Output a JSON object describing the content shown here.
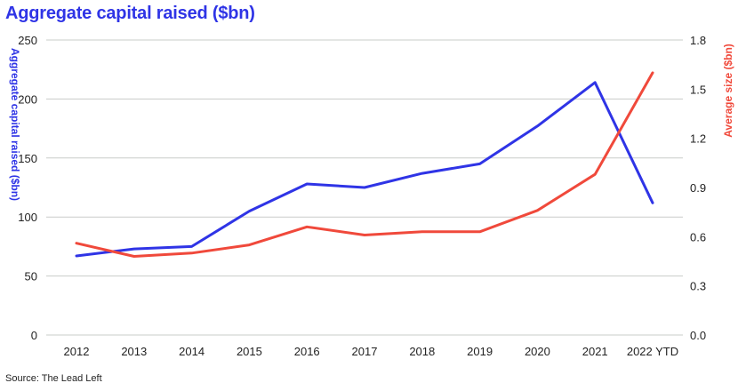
{
  "chart_data": {
    "type": "line",
    "title": "Aggregate capital raised ($bn)",
    "source": "Source: The Lead Left",
    "categories": [
      "2012",
      "2013",
      "2014",
      "2015",
      "2016",
      "2017",
      "2018",
      "2019",
      "2020",
      "2021",
      "2022 YTD"
    ],
    "y_left": {
      "label": "Aggregate capital raised ($bn)",
      "min": 0,
      "max": 250,
      "ticks": [
        "0",
        "50",
        "100",
        "150",
        "200",
        "250"
      ]
    },
    "y_right": {
      "label": "Average size ($bn)",
      "min": 0,
      "max": 1.8,
      "ticks": [
        "0.0",
        "0.3",
        "0.6",
        "0.9",
        "1.2",
        "1.5",
        "1.8"
      ]
    },
    "grid": true,
    "series": [
      {
        "axis": "left",
        "color": "#2f34e6",
        "values": [
          67,
          73,
          75,
          105,
          128,
          125,
          137,
          145,
          177,
          214,
          112
        ]
      },
      {
        "axis": "right",
        "color": "#f0493b",
        "values": [
          0.56,
          0.48,
          0.5,
          0.55,
          0.66,
          0.61,
          0.63,
          0.63,
          0.76,
          0.98,
          1.6
        ]
      }
    ]
  }
}
